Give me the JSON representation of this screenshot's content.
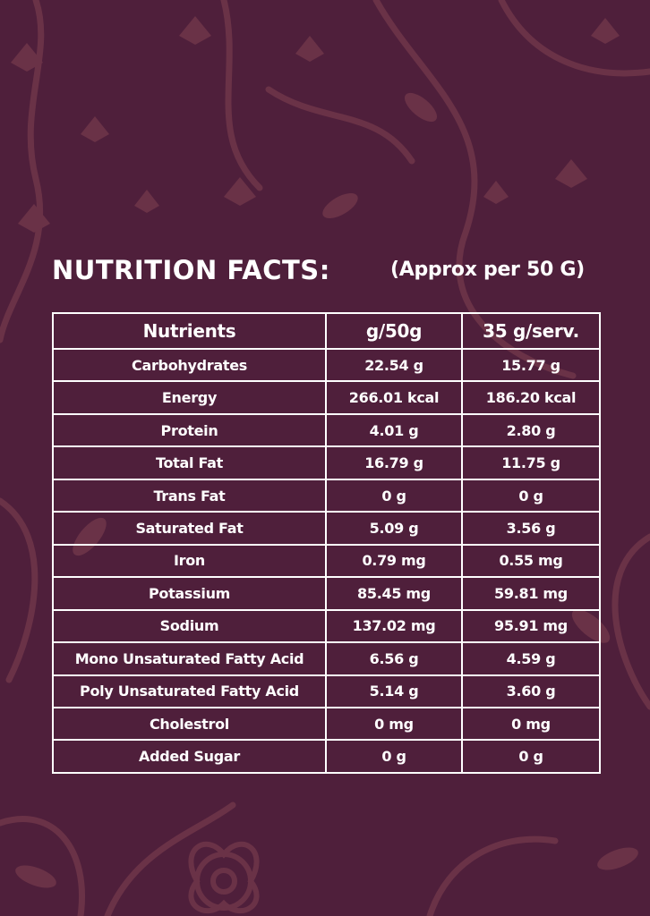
{
  "heading": {
    "title": "NUTRITION FACTS:",
    "subtitle": "(Approx per 50 G)"
  },
  "table": {
    "headers": [
      "Nutrients",
      "g/50g",
      "35 g/serv."
    ],
    "rows": [
      {
        "nutrient": "Carbohydrates",
        "per50": "22.54 g",
        "perServ": "15.77 g"
      },
      {
        "nutrient": "Energy",
        "per50": "266.01 kcal",
        "perServ": "186.20 kcal"
      },
      {
        "nutrient": "Protein",
        "per50": "4.01 g",
        "perServ": "2.80 g"
      },
      {
        "nutrient": "Total Fat",
        "per50": "16.79 g",
        "perServ": "11.75 g"
      },
      {
        "nutrient": "Trans Fat",
        "per50": "0 g",
        "perServ": "0 g"
      },
      {
        "nutrient": "Saturated Fat",
        "per50": "5.09 g",
        "perServ": "3.56 g"
      },
      {
        "nutrient": "Iron",
        "per50": "0.79 mg",
        "perServ": "0.55 mg"
      },
      {
        "nutrient": "Potassium",
        "per50": "85.45 mg",
        "perServ": "59.81 mg"
      },
      {
        "nutrient": "Sodium",
        "per50": "137.02 mg",
        "perServ": "95.91 mg"
      },
      {
        "nutrient": "Mono Unsaturated Fatty Acid",
        "per50": "6.56 g",
        "perServ": "4.59 g"
      },
      {
        "nutrient": "Poly Unsaturated Fatty Acid",
        "per50": "5.14 g",
        "perServ": "3.60 g"
      },
      {
        "nutrient": "Cholestrol",
        "per50": "0 mg",
        "perServ": "0 mg"
      },
      {
        "nutrient": "Added Sugar",
        "per50": "0 g",
        "perServ": "0 g"
      }
    ]
  },
  "colors": {
    "background": "#4f1f3b",
    "ornament": "#6a3247",
    "text": "#ffffff"
  }
}
